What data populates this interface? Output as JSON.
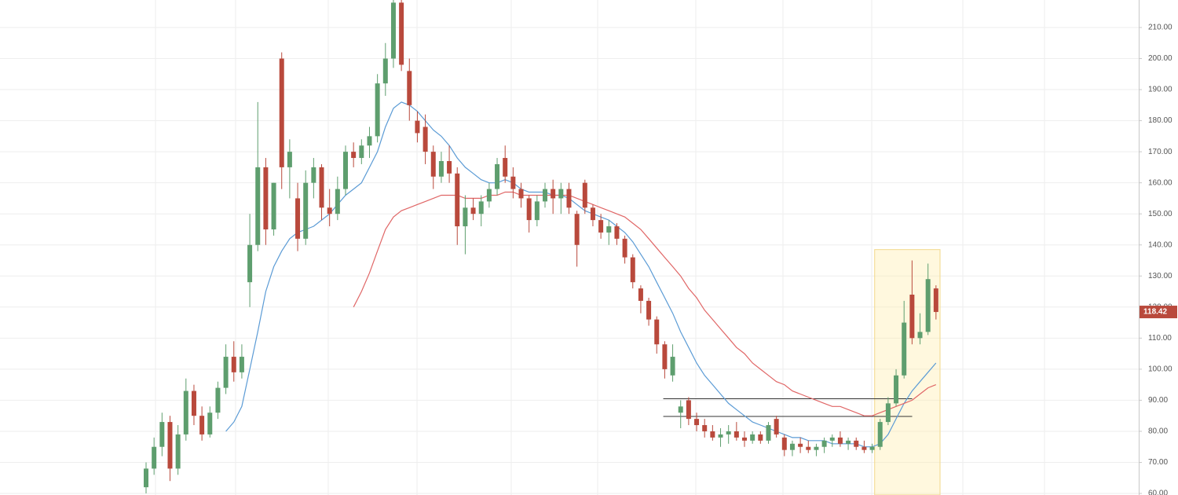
{
  "chart_data": {
    "type": "candlestick",
    "candles": {
      "open": [
        62,
        68,
        75,
        83,
        68,
        79,
        93,
        85,
        79,
        86,
        94,
        104,
        99,
        128,
        140,
        165,
        145,
        200,
        165,
        155,
        142,
        160,
        165,
        152,
        150,
        158,
        170,
        168,
        172,
        175,
        192,
        200,
        218,
        196,
        180,
        178,
        170,
        162,
        167,
        163,
        146,
        152,
        150,
        154,
        158,
        168,
        162,
        158,
        155,
        148,
        154,
        158,
        155,
        158,
        150,
        160,
        152,
        148,
        144,
        146,
        142,
        136,
        126,
        122,
        116,
        108,
        98,
        86,
        90,
        84,
        82,
        80,
        78,
        79,
        80,
        78,
        77,
        79,
        77,
        84,
        78,
        74,
        76,
        75,
        74,
        75,
        77,
        78,
        76,
        77,
        75,
        74,
        75,
        83,
        89,
        98,
        124,
        110,
        112,
        126
      ],
      "high": [
        70,
        78,
        86,
        85,
        82,
        97,
        95,
        88,
        88,
        96,
        108,
        109,
        108,
        150,
        186,
        168,
        160,
        202,
        174,
        160,
        164,
        168,
        166,
        158,
        162,
        172,
        173,
        174,
        178,
        195,
        205,
        220,
        220,
        200,
        183,
        182,
        172,
        170,
        172,
        165,
        156,
        155,
        156,
        160,
        168,
        172,
        165,
        160,
        156,
        156,
        160,
        161,
        160,
        160,
        151,
        161,
        153,
        150,
        148,
        147,
        143,
        137,
        127,
        123,
        117,
        109,
        108,
        90,
        91,
        86,
        84,
        82,
        81,
        82,
        83,
        80,
        80,
        80,
        83,
        85,
        79,
        77,
        78,
        77,
        76,
        78,
        79,
        80,
        78,
        78,
        77,
        76,
        84,
        91,
        100,
        122,
        135,
        118,
        134,
        127
      ],
      "low": [
        60,
        66,
        72,
        64,
        66,
        77,
        82,
        77,
        78,
        84,
        92,
        96,
        97,
        120,
        138,
        140,
        143,
        158,
        155,
        138,
        140,
        155,
        148,
        146,
        148,
        156,
        165,
        166,
        168,
        173,
        188,
        197,
        196,
        180,
        173,
        166,
        158,
        160,
        160,
        140,
        137,
        148,
        146,
        152,
        156,
        160,
        155,
        152,
        144,
        146,
        152,
        150,
        150,
        150,
        133,
        150,
        146,
        142,
        140,
        140,
        134,
        126,
        118,
        114,
        105,
        97,
        96,
        81,
        82,
        80,
        78,
        77,
        75,
        76,
        77,
        75,
        76,
        76,
        76,
        78,
        72,
        72,
        73,
        73,
        72,
        73,
        75,
        75,
        74,
        74,
        73,
        73,
        74,
        82,
        88,
        97,
        108,
        108,
        111,
        116
      ],
      "close": [
        68,
        75,
        83,
        68,
        79,
        93,
        85,
        79,
        86,
        94,
        104,
        99,
        104,
        140,
        165,
        145,
        160,
        165,
        170,
        142,
        160,
        165,
        152,
        150,
        158,
        170,
        168,
        172,
        175,
        192,
        200,
        218,
        198,
        185,
        176,
        170,
        162,
        167,
        163,
        146,
        152,
        150,
        154,
        158,
        166,
        162,
        158,
        155,
        148,
        154,
        158,
        155,
        158,
        152,
        140,
        152,
        148,
        144,
        146,
        142,
        136,
        128,
        122,
        116,
        108,
        100,
        104,
        88,
        84,
        82,
        80,
        78,
        79,
        80,
        78,
        77,
        79,
        77,
        82,
        79,
        74,
        76,
        75,
        74,
        75,
        77,
        78,
        76,
        77,
        75,
        74,
        75,
        83,
        89,
        98,
        115,
        110,
        112,
        129,
        118.42
      ]
    },
    "up_color": "#5e9e6e",
    "down_color": "#b9493c",
    "series": [
      {
        "color": "#5b9bd5",
        "values": [
          null,
          null,
          null,
          null,
          null,
          null,
          null,
          null,
          null,
          null,
          80,
          83,
          88,
          100,
          112,
          125,
          133,
          138,
          142,
          144,
          145,
          146,
          148,
          150,
          153,
          156,
          158,
          160,
          165,
          170,
          178,
          184,
          186,
          185,
          183,
          180,
          177,
          175,
          172,
          168,
          165,
          163,
          161,
          160,
          160,
          161,
          160,
          158,
          157,
          157,
          157,
          156,
          156,
          155,
          153,
          151,
          150,
          149,
          148,
          146,
          144,
          141,
          137,
          133,
          128,
          123,
          118,
          112,
          107,
          102,
          98,
          95,
          92,
          89,
          87,
          85,
          83,
          82,
          81,
          80,
          79,
          78,
          78,
          77,
          77,
          77,
          76,
          76,
          76,
          76,
          75,
          75,
          76,
          79,
          84,
          89,
          93,
          96,
          99,
          102
        ]
      },
      {
        "color": "#e06666",
        "values": [
          null,
          null,
          null,
          null,
          null,
          null,
          null,
          null,
          null,
          null,
          null,
          null,
          null,
          null,
          null,
          null,
          null,
          null,
          null,
          null,
          null,
          null,
          null,
          null,
          null,
          null,
          120,
          125,
          131,
          138,
          145,
          149,
          151,
          152,
          153,
          154,
          155,
          156,
          156,
          156,
          155,
          155,
          155,
          156,
          156,
          157,
          157,
          156,
          156,
          156,
          156,
          156,
          156,
          156,
          155,
          154,
          153,
          152,
          151,
          150,
          149,
          147,
          145,
          142,
          139,
          136,
          133,
          130,
          126,
          123,
          119,
          116,
          113,
          110,
          107,
          105,
          102,
          100,
          98,
          96,
          95,
          93,
          92,
          91,
          90,
          89,
          88,
          88,
          87,
          86,
          85,
          85,
          86,
          87,
          88,
          89,
          90,
          92,
          94,
          95
        ]
      }
    ],
    "levels": [
      90.5,
      84.8
    ],
    "highlight_ylim": [
      59.5,
      138.5
    ],
    "ylim": [
      59.5,
      218.85
    ],
    "yticks": [
      {
        "value": 60,
        "label": "60.00"
      },
      {
        "value": 70,
        "label": "70.00"
      },
      {
        "value": 80,
        "label": "80.00"
      },
      {
        "value": 90,
        "label": "90.00"
      },
      {
        "value": 100,
        "label": "100.00"
      },
      {
        "value": 110,
        "label": "110.00"
      },
      {
        "value": 120,
        "label": "120.00"
      },
      {
        "value": 130,
        "label": "130.00"
      },
      {
        "value": 140,
        "label": "140.00"
      },
      {
        "value": 150,
        "label": "150.00"
      },
      {
        "value": 160,
        "label": "160.00"
      },
      {
        "value": 170,
        "label": "170.00"
      },
      {
        "value": 180,
        "label": "180.00"
      },
      {
        "value": 190,
        "label": "190.00"
      },
      {
        "value": 200,
        "label": "200.00"
      },
      {
        "value": 210,
        "label": "210.00"
      }
    ],
    "grid": true
  }
}
